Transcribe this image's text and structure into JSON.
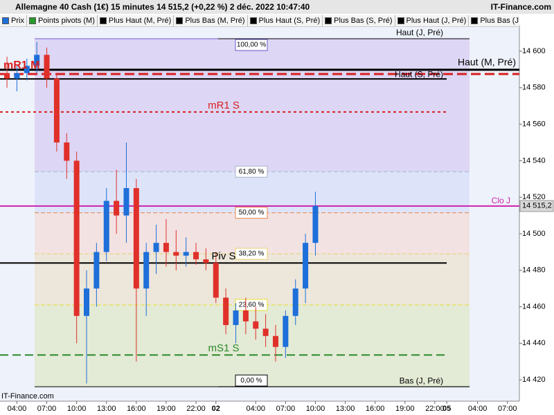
{
  "chart_data": {
    "type": "candlestick",
    "title": "Allemagne 40 Cash (1€) 15 minutes 14 515,2 (+0,22 %) 2 déc. 2022 10:47:40",
    "source": "IT-Finance.com",
    "legend": [
      {
        "name": "Prix",
        "color": "#1e6fd9"
      },
      {
        "name": "Points pivots (M)",
        "color": "#2a9a2a"
      },
      {
        "name": "Plus Haut (M, Pré)",
        "color": "#000000"
      },
      {
        "name": "Plus Bas (M, Pré)",
        "color": "#000000"
      },
      {
        "name": "Plus Haut (S, Pré)",
        "color": "#000000"
      },
      {
        "name": "Plus Bas (S, Pré)",
        "color": "#000000"
      },
      {
        "name": "Plus Haut (J, Pré)",
        "color": "#000000"
      },
      {
        "name": "Plus Bas (J, Pré)",
        "color": "#000000"
      }
    ],
    "up_color": "#1e6fd9",
    "down_color": "#e0302a",
    "candles": [
      {
        "x": 3,
        "open": 14588,
        "high": 14597,
        "low": 14580,
        "close": 14585
      },
      {
        "x": 4,
        "open": 14585,
        "high": 14592,
        "low": 14578,
        "close": 14588
      },
      {
        "x": 5,
        "open": 14588,
        "high": 14596,
        "low": 14584,
        "close": 14592
      },
      {
        "x": 6,
        "open": 14592,
        "high": 14605,
        "low": 14588,
        "close": 14598
      },
      {
        "x": 7,
        "open": 14598,
        "high": 14602,
        "low": 14580,
        "close": 14585
      },
      {
        "x": 8,
        "open": 14585,
        "high": 14588,
        "low": 14545,
        "close": 14550
      },
      {
        "x": 9,
        "open": 14550,
        "high": 14555,
        "low": 14530,
        "close": 14540
      },
      {
        "x": 10,
        "open": 14540,
        "high": 14545,
        "low": 14440,
        "close": 14455
      },
      {
        "x": 11,
        "open": 14455,
        "high": 14480,
        "low": 14418,
        "close": 14470
      },
      {
        "x": 12,
        "open": 14470,
        "high": 14495,
        "low": 14460,
        "close": 14490
      },
      {
        "x": 13,
        "open": 14490,
        "high": 14525,
        "low": 14485,
        "close": 14518
      },
      {
        "x": 14,
        "open": 14518,
        "high": 14535,
        "low": 14500,
        "close": 14510
      },
      {
        "x": 15,
        "open": 14510,
        "high": 14550,
        "low": 14495,
        "close": 14525
      },
      {
        "x": 16,
        "open": 14525,
        "high": 14530,
        "low": 14430,
        "close": 14470
      },
      {
        "x": 17,
        "open": 14470,
        "high": 14495,
        "low": 14455,
        "close": 14490
      },
      {
        "x": 18,
        "open": 14490,
        "high": 14505,
        "low": 14478,
        "close": 14495
      },
      {
        "x": 19,
        "open": 14495,
        "high": 14508,
        "low": 14482,
        "close": 14490
      },
      {
        "x": 20,
        "open": 14490,
        "high": 14502,
        "low": 14480,
        "close": 14488
      },
      {
        "x": 21,
        "open": 14488,
        "high": 14498,
        "low": 14482,
        "close": 14490
      },
      {
        "x": 22,
        "open": 14490,
        "high": 14495,
        "low": 14483,
        "close": 14486
      },
      {
        "x": 23,
        "open": 14486,
        "high": 14492,
        "low": 14480,
        "close": 14484
      },
      {
        "x": 24,
        "open": 14484,
        "high": 14490,
        "low": 14462,
        "close": 14465
      },
      {
        "x": 25,
        "open": 14465,
        "high": 14470,
        "low": 14445,
        "close": 14450
      },
      {
        "x": 26,
        "open": 14450,
        "high": 14462,
        "low": 14440,
        "close": 14458
      },
      {
        "x": 27,
        "open": 14458,
        "high": 14465,
        "low": 14445,
        "close": 14452
      },
      {
        "x": 28,
        "open": 14452,
        "high": 14460,
        "low": 14442,
        "close": 14448
      },
      {
        "x": 29,
        "open": 14448,
        "high": 14456,
        "low": 14438,
        "close": 14444
      },
      {
        "x": 30,
        "open": 14444,
        "high": 14450,
        "low": 14430,
        "close": 14438
      },
      {
        "x": 31,
        "open": 14438,
        "high": 14458,
        "low": 14432,
        "close": 14455
      },
      {
        "x": 32,
        "open": 14455,
        "high": 14475,
        "low": 14450,
        "close": 14470
      },
      {
        "x": 33,
        "open": 14470,
        "high": 14500,
        "low": 14462,
        "close": 14495
      },
      {
        "x": 34,
        "open": 14495,
        "high": 14523,
        "low": 14488,
        "close": 14515.2
      }
    ],
    "fibonacci": [
      {
        "label": "100,00 %",
        "value": 14606.8,
        "color": "#ddd6f4",
        "border": "#6a5acd"
      },
      {
        "label": "61,80 %",
        "value": 14534.0,
        "color": "#dde4fa",
        "border": "#aab0c8"
      },
      {
        "label": "50,00 %",
        "value": 14511.5,
        "color": "#f2e2e2",
        "border": "#e8874a"
      },
      {
        "label": "38,20 %",
        "value": 14489.0,
        "color": "#ede6da",
        "border": "#e8d070"
      },
      {
        "label": "23,60 %",
        "value": 14461.0,
        "color": "#e3ead5",
        "border": "#e8e030"
      },
      {
        "label": "0,00 %",
        "value": 14416.2,
        "color": "#e3ead5",
        "border": "#000000"
      }
    ],
    "levels": [
      {
        "name": "Haut (J, Pré)",
        "value": 14606.8,
        "color": "#000000",
        "width": 1,
        "dash": ""
      },
      {
        "name": "Haut (M, Pré)",
        "value": 14589.8,
        "color": "#000000",
        "width": 3,
        "dash": ""
      },
      {
        "name": "mR1 M",
        "value": 14587.5,
        "color": "#d81e1e",
        "width": 3,
        "dash": "14 6"
      },
      {
        "name": "Haut (S, Pré)",
        "value": 14584.8,
        "color": "#000000",
        "width": 2,
        "dash": ""
      },
      {
        "name": "mR1 S",
        "value": 14566.7,
        "color": "#d81e1e",
        "width": 2,
        "dash": "4 4"
      },
      {
        "name": "Clo J",
        "value": 14515.2,
        "color": "#cc22aa",
        "width": 2,
        "dash": ""
      },
      {
        "name": "Piv S",
        "value": 14484.0,
        "color": "#000000",
        "width": 2,
        "dash": ""
      },
      {
        "name": "mS1 S",
        "value": 14433.6,
        "color": "#2a8a2a",
        "width": 2,
        "dash": "12 6"
      },
      {
        "name": "Bas (J, Pré)",
        "value": 14416.2,
        "color": "#000000",
        "width": 1,
        "dash": ""
      }
    ],
    "last_price": {
      "value": 14515.2,
      "label": "14 515,2"
    },
    "xlim": [
      2.3,
      54.5
    ],
    "ylim": [
      14408.3,
      14614.4
    ],
    "yticks": [
      {
        "value": 14420,
        "label": "14 420"
      },
      {
        "value": 14440,
        "label": "14 440"
      },
      {
        "value": 14460,
        "label": "14 460"
      },
      {
        "value": 14480,
        "label": "14 480"
      },
      {
        "value": 14500,
        "label": "14 500"
      },
      {
        "value": 14520,
        "label": "14 520"
      },
      {
        "value": 14540,
        "label": "14 540"
      },
      {
        "value": 14560,
        "label": "14 560"
      },
      {
        "value": 14580,
        "label": "14 580"
      },
      {
        "value": 14600,
        "label": "14 600"
      }
    ],
    "xticks": [
      {
        "value": 4,
        "label": "04:00"
      },
      {
        "value": 7,
        "label": "07:00"
      },
      {
        "value": 10,
        "label": "10:00"
      },
      {
        "value": 13,
        "label": "13:00"
      },
      {
        "value": 16,
        "label": "16:00"
      },
      {
        "value": 19,
        "label": "19:00"
      },
      {
        "value": 22,
        "label": "22:00"
      },
      {
        "value": 24,
        "label": "02"
      },
      {
        "value": 28,
        "label": "04:00"
      },
      {
        "value": 31,
        "label": "07:00"
      },
      {
        "value": 34,
        "label": "10:00"
      },
      {
        "value": 37,
        "label": "13:00"
      },
      {
        "value": 40,
        "label": "16:00"
      },
      {
        "value": 43,
        "label": "19:00"
      },
      {
        "value": 46,
        "label": "22:00"
      },
      {
        "value": 47.2,
        "label": "05"
      },
      {
        "value": 50.3,
        "label": "04:00"
      },
      {
        "value": 53.3,
        "label": "07:00"
      }
    ]
  }
}
